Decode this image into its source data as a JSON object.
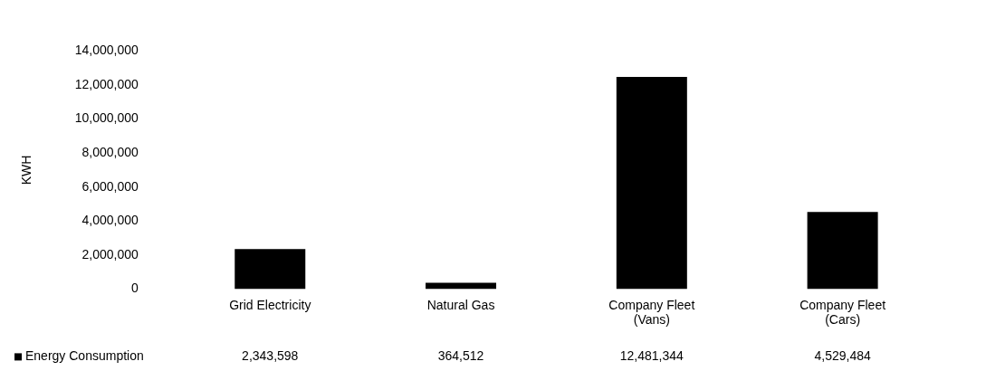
{
  "chart_data": {
    "type": "bar",
    "ylabel": "KWH",
    "categories": [
      "Grid Electricity",
      "Natural Gas",
      "Company Fleet (Vans)",
      "Company Fleet (Cars)"
    ],
    "series": [
      {
        "name": "Energy Consumption",
        "color": "#000000",
        "values": [
          2343598,
          364512,
          12481344,
          4529484
        ],
        "value_labels": [
          "2,343,598",
          "364,512",
          "12,481,344",
          "4,529,484"
        ]
      }
    ],
    "ylim": [
      0,
      14000000
    ],
    "yticks": [
      {
        "value": 0,
        "label": "0"
      },
      {
        "value": 2000000,
        "label": "2,000,000"
      },
      {
        "value": 4000000,
        "label": "4,000,000"
      },
      {
        "value": 6000000,
        "label": "6,000,000"
      },
      {
        "value": 8000000,
        "label": "8,000,000"
      },
      {
        "value": 10000000,
        "label": "10,000,000"
      },
      {
        "value": 12000000,
        "label": "12,000,000"
      },
      {
        "value": 14000000,
        "label": "14,000,000"
      }
    ]
  }
}
